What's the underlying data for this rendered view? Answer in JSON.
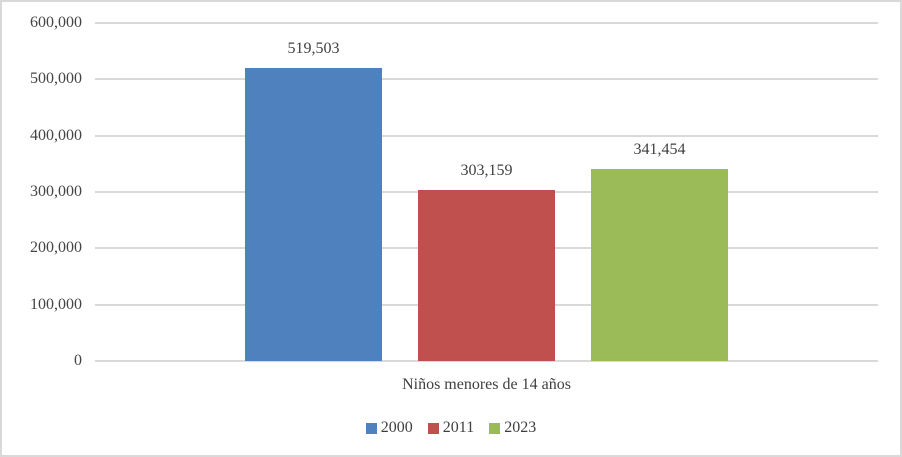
{
  "chart_data": {
    "type": "bar",
    "title": "",
    "categories": [
      "Niños menores de 14 años"
    ],
    "series": [
      {
        "name": "2000",
        "values": [
          519503
        ],
        "data_label": "519,503",
        "color": "#4E81BD"
      },
      {
        "name": "2011",
        "values": [
          303159
        ],
        "data_label": "303,159",
        "color": "#C0504D"
      },
      {
        "name": "2023",
        "values": [
          341454
        ],
        "data_label": "341,454",
        "color": "#9BBB59"
      }
    ],
    "xlabel": "",
    "ylabel": "",
    "ylim": [
      0,
      600000
    ],
    "yticks": [
      {
        "value": 0,
        "label": "0"
      },
      {
        "value": 100000,
        "label": "100,000"
      },
      {
        "value": 200000,
        "label": "200,000"
      },
      {
        "value": 300000,
        "label": "300,000"
      },
      {
        "value": 400000,
        "label": "400,000"
      },
      {
        "value": 500000,
        "label": "500,000"
      },
      {
        "value": 600000,
        "label": "600,000"
      }
    ],
    "grid": true,
    "legend_position": "bottom",
    "legend_labels": [
      "2000",
      "2011",
      "2023"
    ],
    "colors": {
      "gridline": "#D9D9D9",
      "border": "#D9D9D9",
      "text": "#444444",
      "plot_bg": "#FFFFFF"
    }
  }
}
